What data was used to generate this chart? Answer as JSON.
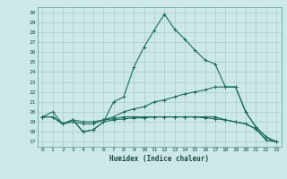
{
  "title": "",
  "xlabel": "Humidex (Indice chaleur)",
  "ylabel": "",
  "bg_color": "#cce8e8",
  "grid_color": "#aacccc",
  "line_color": "#1a6b5a",
  "xlim": [
    -0.5,
    23.5
  ],
  "ylim": [
    16.5,
    30.5
  ],
  "yticks": [
    17,
    18,
    19,
    20,
    21,
    22,
    23,
    24,
    25,
    26,
    27,
    28,
    29,
    30
  ],
  "xticks": [
    0,
    1,
    2,
    3,
    4,
    5,
    6,
    7,
    8,
    9,
    10,
    11,
    12,
    13,
    14,
    15,
    16,
    17,
    18,
    19,
    20,
    21,
    22,
    23
  ],
  "lines": [
    {
      "x": [
        0,
        1,
        2,
        3,
        4,
        5,
        6,
        7,
        8,
        9,
        10,
        11,
        12,
        13,
        14,
        15,
        16,
        17,
        18,
        19,
        20,
        21,
        22,
        23
      ],
      "y": [
        19.5,
        20.0,
        18.8,
        19.2,
        18.0,
        18.2,
        19.0,
        21.0,
        21.5,
        24.5,
        26.5,
        28.2,
        29.8,
        28.3,
        27.3,
        26.2,
        25.2,
        24.8,
        22.5,
        22.5,
        20.0,
        18.5,
        17.5,
        17.0
      ]
    },
    {
      "x": [
        0,
        1,
        2,
        3,
        4,
        5,
        6,
        7,
        8,
        9,
        10,
        11,
        12,
        13,
        14,
        15,
        16,
        17,
        18,
        19,
        20,
        21,
        22,
        23
      ],
      "y": [
        19.5,
        19.5,
        18.8,
        19.0,
        18.8,
        18.8,
        19.2,
        19.5,
        20.0,
        20.3,
        20.5,
        21.0,
        21.2,
        21.5,
        21.8,
        22.0,
        22.2,
        22.5,
        22.5,
        22.5,
        20.0,
        18.5,
        17.5,
        17.0
      ]
    },
    {
      "x": [
        0,
        1,
        2,
        3,
        4,
        5,
        6,
        7,
        8,
        9,
        10,
        11,
        12,
        13,
        14,
        15,
        16,
        17,
        18,
        19,
        20,
        21,
        22,
        23
      ],
      "y": [
        19.5,
        19.5,
        18.8,
        19.2,
        19.0,
        19.0,
        19.2,
        19.3,
        19.5,
        19.5,
        19.5,
        19.5,
        19.5,
        19.5,
        19.5,
        19.5,
        19.5,
        19.5,
        19.2,
        19.0,
        18.8,
        18.3,
        17.2,
        17.0
      ]
    },
    {
      "x": [
        0,
        1,
        2,
        3,
        4,
        5,
        6,
        7,
        8,
        9,
        10,
        11,
        12,
        13,
        14,
        15,
        16,
        17,
        18,
        19,
        20,
        21,
        22,
        23
      ],
      "y": [
        19.5,
        19.5,
        18.8,
        19.2,
        18.0,
        18.2,
        19.0,
        19.2,
        19.3,
        19.4,
        19.4,
        19.5,
        19.5,
        19.5,
        19.5,
        19.5,
        19.4,
        19.3,
        19.2,
        19.0,
        18.8,
        18.3,
        17.2,
        17.0
      ]
    }
  ]
}
